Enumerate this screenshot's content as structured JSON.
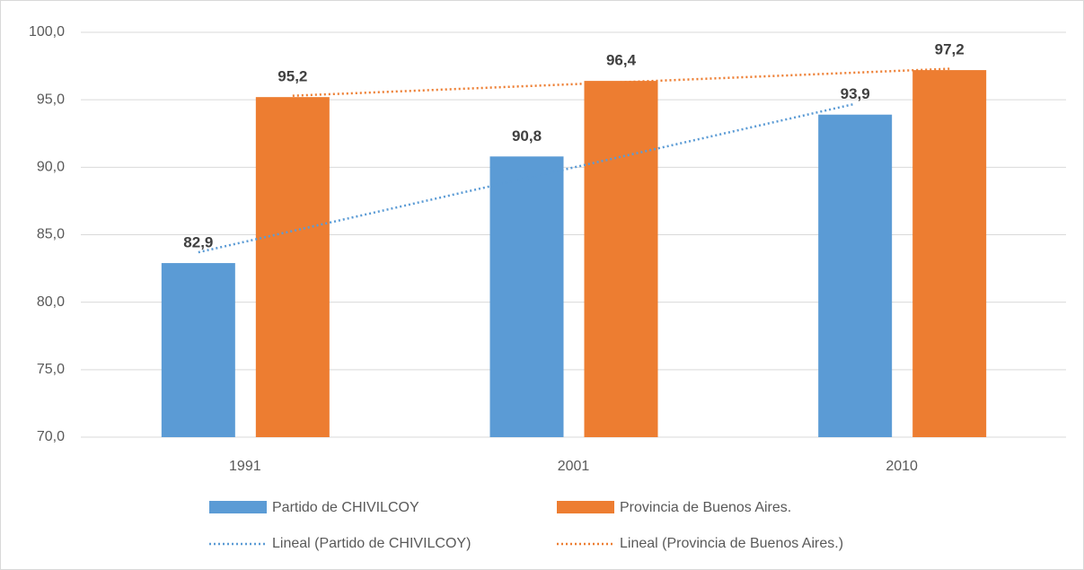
{
  "chart_data": {
    "type": "bar",
    "categories": [
      "1991",
      "2001",
      "2010"
    ],
    "series": [
      {
        "name": "Partido de CHIVILCOY",
        "color": "#5b9bd5",
        "values": [
          82.9,
          90.8,
          93.9
        ],
        "value_labels": [
          "82,9",
          "90,8",
          "93,9"
        ]
      },
      {
        "name": "Provincia de Buenos Aires.",
        "color": "#ed7d31",
        "values": [
          95.2,
          96.4,
          97.2
        ],
        "value_labels": [
          "95,2",
          "96,4",
          "97,2"
        ]
      }
    ],
    "trendlines": [
      {
        "name": "Lineal (Partido de CHIVILCOY)",
        "color": "#5b9bd5",
        "values": [
          83.7,
          89.2,
          94.7
        ]
      },
      {
        "name": "Lineal (Provincia de Buenos Aires.)",
        "color": "#ed7d31",
        "values": [
          95.3,
          96.3,
          97.3
        ]
      }
    ],
    "ylim": [
      70,
      100
    ],
    "yticks": [
      {
        "value": 70,
        "label": "70,0"
      },
      {
        "value": 75,
        "label": "75,0"
      },
      {
        "value": 80,
        "label": "80,0"
      },
      {
        "value": 85,
        "label": "85,0"
      },
      {
        "value": 90,
        "label": "90,0"
      },
      {
        "value": 95,
        "label": "95,0"
      },
      {
        "value": 100,
        "label": "100,0"
      }
    ],
    "grid": true,
    "legend": "bottom"
  }
}
